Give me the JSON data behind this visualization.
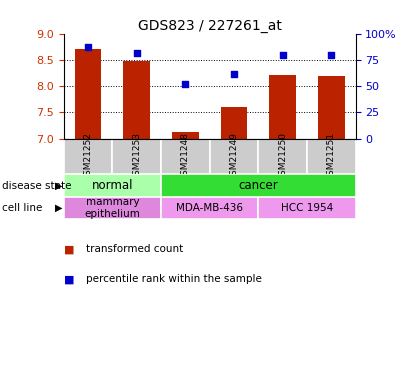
{
  "title": "GDS823 / 227261_at",
  "samples": [
    "GSM21252",
    "GSM21253",
    "GSM21248",
    "GSM21249",
    "GSM21250",
    "GSM21251"
  ],
  "bar_values": [
    8.7,
    8.48,
    7.13,
    7.6,
    8.22,
    8.2
  ],
  "percentile_values": [
    87,
    82,
    52,
    62,
    80,
    80
  ],
  "ylim_left": [
    7,
    9
  ],
  "ylim_right": [
    0,
    100
  ],
  "yticks_left": [
    7,
    7.5,
    8,
    8.5,
    9
  ],
  "yticks_right": [
    0,
    25,
    50,
    75,
    100
  ],
  "bar_color": "#bb2200",
  "marker_color": "#0000cc",
  "disease_state_groups": [
    {
      "label": "normal",
      "start": 0,
      "end": 2,
      "color": "#aaffaa"
    },
    {
      "label": "cancer",
      "start": 2,
      "end": 6,
      "color": "#33dd33"
    }
  ],
  "cell_line_groups": [
    {
      "label": "mammary\nepithelium",
      "start": 0,
      "end": 2,
      "color": "#dd88dd"
    },
    {
      "label": "MDA-MB-436",
      "start": 2,
      "end": 4,
      "color": "#ee99ee"
    },
    {
      "label": "HCC 1954",
      "start": 4,
      "end": 6,
      "color": "#ee99ee"
    }
  ],
  "left_label_color": "#cc3300",
  "right_label_color": "#0000cc",
  "grid_lines": [
    7.5,
    8.0,
    8.5
  ],
  "sample_label_bg": "#cccccc",
  "legend_red_label": "transformed count",
  "legend_blue_label": "percentile rank within the sample",
  "disease_state_side": "disease state",
  "cell_line_side": "cell line"
}
